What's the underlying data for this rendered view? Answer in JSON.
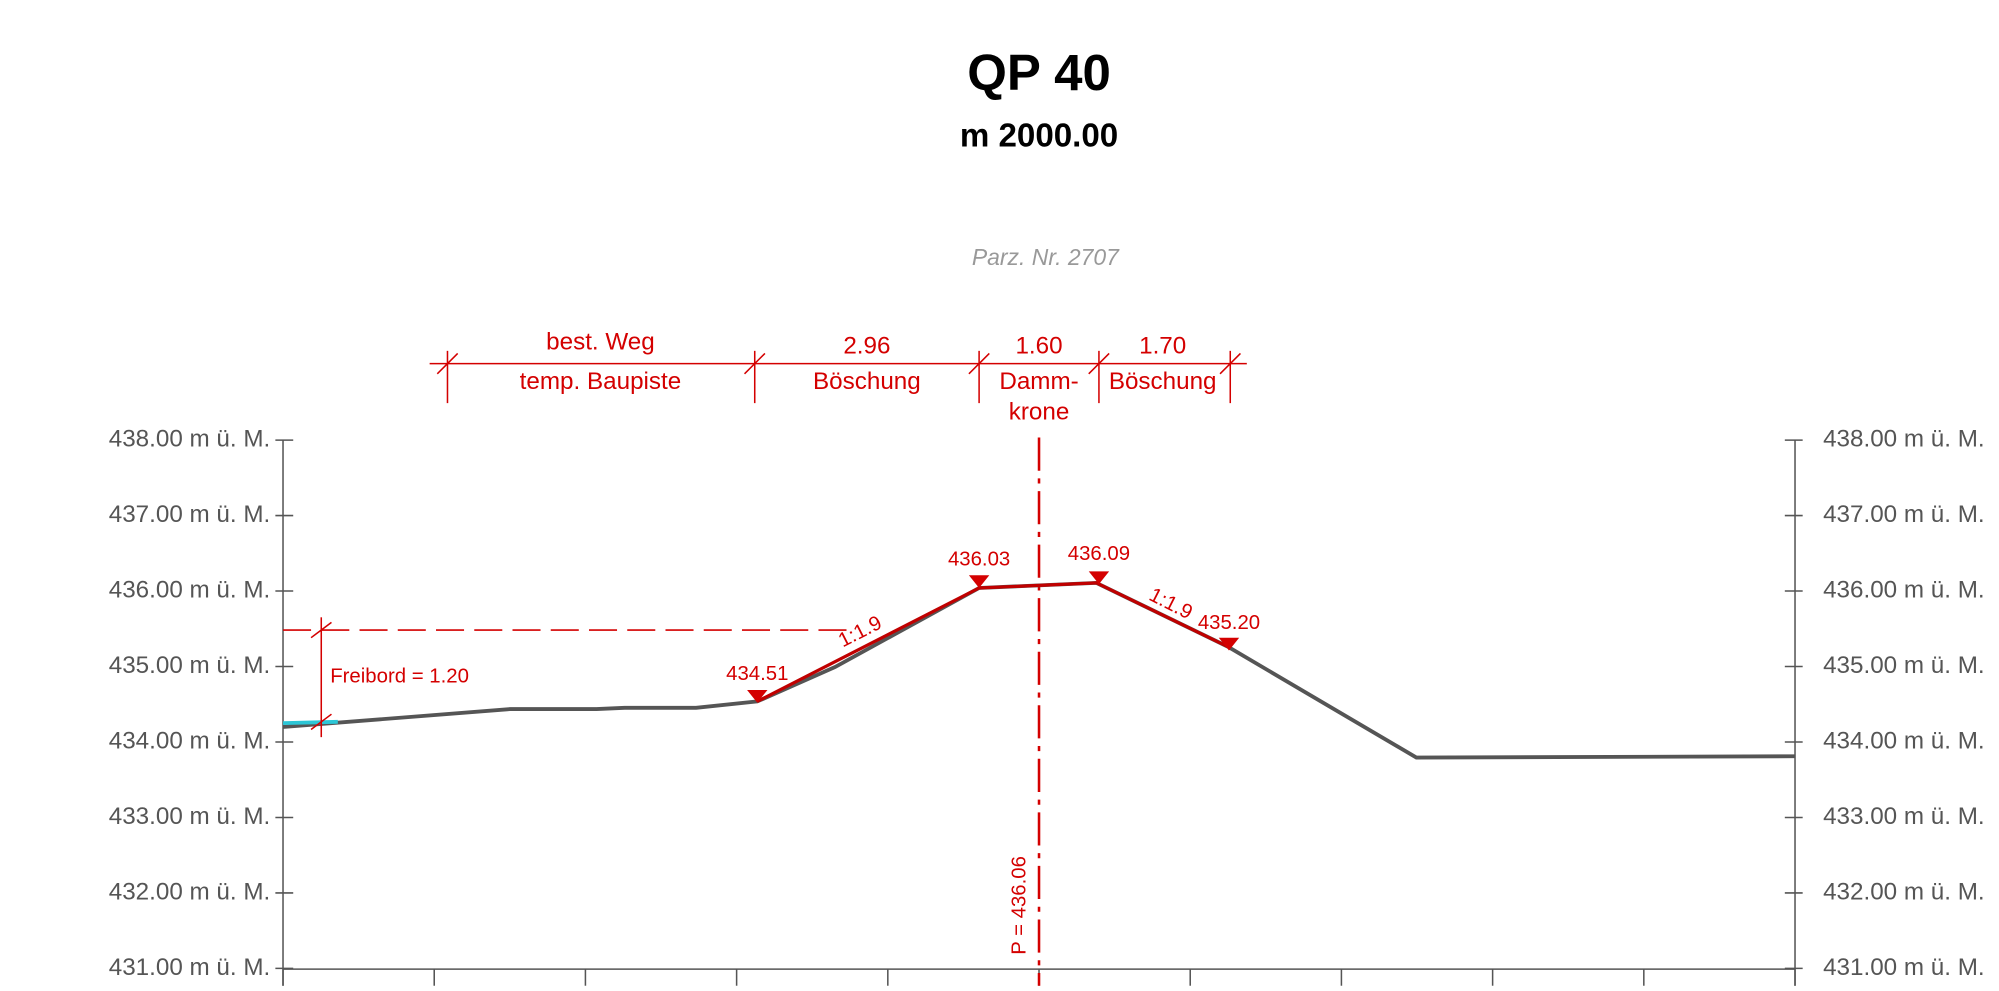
{
  "header": {
    "title": "QP 40",
    "subtitle": "m 2000.00"
  },
  "parcel": "Parz. Nr. 2707",
  "elevation_labels": [
    "438.00 m ü. M.",
    "437.00 m ü. M.",
    "436.00 m ü. M.",
    "435.00 m ü. M.",
    "434.00 m ü. M.",
    "433.00 m ü. M.",
    "432.00 m ü. M.",
    "431.00 m ü. M."
  ],
  "dimensions": [
    {
      "top": "best. Weg",
      "bottom": "temp. Baupiste"
    },
    {
      "top": "2.96",
      "bottom": "Böschung"
    },
    {
      "top": "1.60",
      "bottom": "Damm-",
      "bottom2": "krone"
    },
    {
      "top": "1.70",
      "bottom": "Böschung"
    }
  ],
  "points": [
    "434.51",
    "436.03",
    "436.09",
    "435.20"
  ],
  "slopes": [
    "1:1.9",
    "1:1.9"
  ],
  "freeboard": "Freibord = 1.20",
  "axis_label": "P = 436.06"
}
